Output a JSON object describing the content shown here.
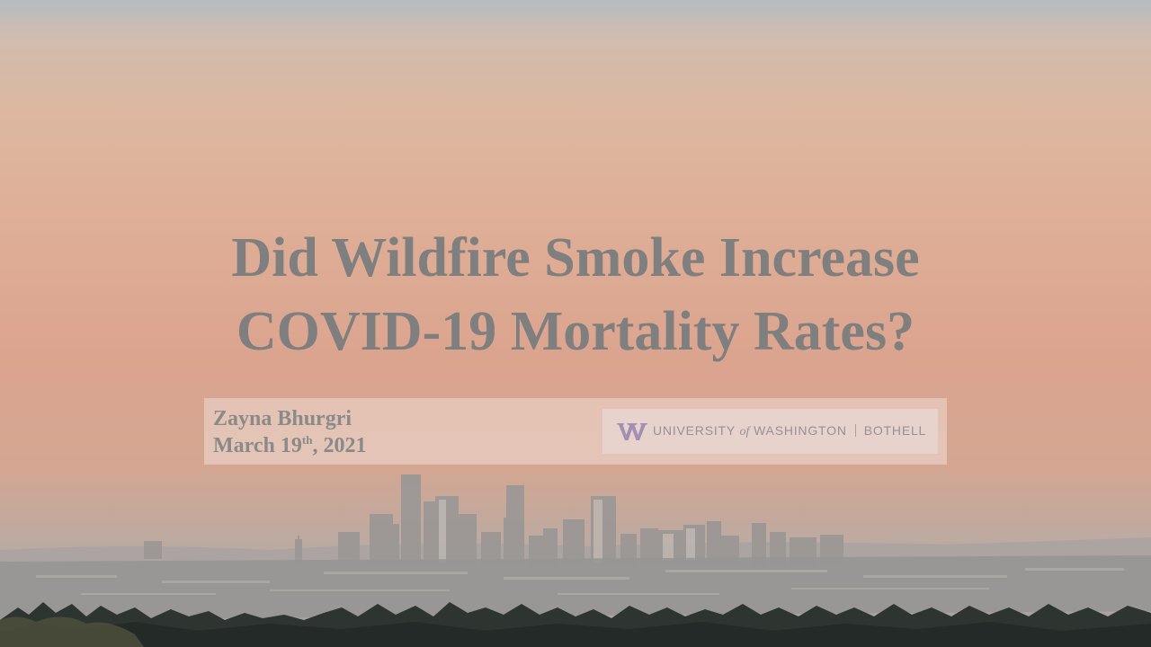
{
  "slide": {
    "title_line1": "Did Wildfire Smoke Increase",
    "title_line2": "COVID-19 Mortality Rates?",
    "author": "Zayna Bhurgri",
    "date_prefix": "March 19",
    "date_suffix": "th",
    "date_year": ", 2021",
    "logo": {
      "university": "UNIVERSITY",
      "of": "of",
      "name": "WASHINGTON",
      "campus": "BOTHELL",
      "mark_color": "#a48fb4"
    }
  },
  "colors": {
    "title": "#7f7f7f",
    "sky_top": "#b6bcc0",
    "sky_mid": "#dfae96",
    "trees": "#2e3531"
  }
}
